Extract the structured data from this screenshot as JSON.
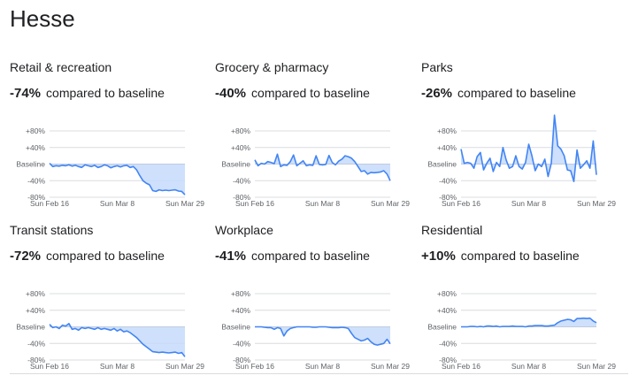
{
  "page": {
    "title": "Hesse"
  },
  "common": {
    "suffix": "compared to baseline"
  },
  "chart_data": [
    {
      "type": "line",
      "title": "Retail & recreation",
      "headline": "-74%",
      "ylim": [
        -80,
        80
      ],
      "yticks": [
        {
          "value": 80,
          "label": "+80%"
        },
        {
          "value": 40,
          "label": "+40%"
        },
        {
          "value": 0,
          "label": "Baseline"
        },
        {
          "value": -40,
          "label": "-40%"
        },
        {
          "value": -80,
          "label": "-80%"
        }
      ],
      "xticks": [
        {
          "index": 0,
          "label": "Sun Feb 16"
        },
        {
          "index": 21,
          "label": "Sun Mar 8"
        },
        {
          "index": 42,
          "label": "Sun Mar 29"
        }
      ],
      "values": [
        2,
        -6,
        -4,
        -5,
        -3,
        -4,
        -2,
        -5,
        -3,
        -6,
        -8,
        -2,
        -4,
        -6,
        -3,
        -8,
        -6,
        -2,
        -4,
        -9,
        -6,
        -4,
        -7,
        -4,
        -3,
        -8,
        -6,
        -14,
        -28,
        -40,
        -46,
        -50,
        -64,
        -66,
        -62,
        -64,
        -63,
        -64,
        -63,
        -62,
        -65,
        -66,
        -74
      ]
    },
    {
      "type": "line",
      "title": "Grocery & pharmacy",
      "headline": "-40%",
      "ylim": [
        -80,
        80
      ],
      "yticks": [
        {
          "value": 80,
          "label": "+80%"
        },
        {
          "value": 40,
          "label": "+40%"
        },
        {
          "value": 0,
          "label": "Baseline"
        },
        {
          "value": -40,
          "label": "-40%"
        },
        {
          "value": -80,
          "label": "-80%"
        }
      ],
      "xticks": [
        {
          "index": 0,
          "label": "Sun Feb 16"
        },
        {
          "index": 21,
          "label": "Sun Mar 8"
        },
        {
          "index": 42,
          "label": "Sun Mar 29"
        }
      ],
      "values": [
        10,
        -4,
        2,
        0,
        6,
        4,
        1,
        24,
        -6,
        -2,
        -3,
        6,
        22,
        -4,
        2,
        8,
        -4,
        -2,
        -3,
        20,
        -1,
        -2,
        -1,
        21,
        4,
        -2,
        7,
        12,
        20,
        18,
        14,
        6,
        -6,
        -18,
        -16,
        -24,
        -20,
        -21,
        -20,
        -19,
        -16,
        -24,
        -40
      ]
    },
    {
      "type": "line",
      "title": "Parks",
      "headline": "-26%",
      "ylim": [
        -80,
        80
      ],
      "yticks": [
        {
          "value": 80,
          "label": "+80%"
        },
        {
          "value": 40,
          "label": "+40%"
        },
        {
          "value": 0,
          "label": "Baseline"
        },
        {
          "value": -40,
          "label": "-40%"
        },
        {
          "value": -80,
          "label": "-80%"
        }
      ],
      "xticks": [
        {
          "index": 0,
          "label": "Sun Feb 16"
        },
        {
          "index": 21,
          "label": "Sun Mar 8"
        },
        {
          "index": 42,
          "label": "Sun Mar 29"
        }
      ],
      "values": [
        36,
        2,
        4,
        2,
        -10,
        18,
        28,
        -14,
        2,
        14,
        -18,
        4,
        -6,
        40,
        10,
        -10,
        -6,
        20,
        -6,
        -12,
        4,
        48,
        20,
        -16,
        0,
        -6,
        12,
        -30,
        2,
        118,
        44,
        36,
        20,
        -14,
        -16,
        -42,
        34,
        -10,
        -2,
        8,
        -10,
        56,
        -26
      ]
    },
    {
      "type": "line",
      "title": "Transit stations",
      "headline": "-72%",
      "ylim": [
        -80,
        80
      ],
      "yticks": [
        {
          "value": 80,
          "label": "+80%"
        },
        {
          "value": 40,
          "label": "+40%"
        },
        {
          "value": 0,
          "label": "Baseline"
        },
        {
          "value": -40,
          "label": "-40%"
        },
        {
          "value": -80,
          "label": "-80%"
        }
      ],
      "xticks": [
        {
          "index": 0,
          "label": "Sun Feb 16"
        },
        {
          "index": 21,
          "label": "Sun Mar 8"
        },
        {
          "index": 42,
          "label": "Sun Mar 29"
        }
      ],
      "values": [
        6,
        -2,
        0,
        -4,
        4,
        2,
        8,
        -6,
        -4,
        -8,
        -2,
        -4,
        -2,
        -4,
        -6,
        -2,
        -6,
        -4,
        -6,
        -8,
        -4,
        -10,
        -6,
        -12,
        -10,
        -14,
        -20,
        -26,
        -34,
        -42,
        -48,
        -54,
        -60,
        -61,
        -62,
        -61,
        -62,
        -63,
        -62,
        -61,
        -64,
        -62,
        -72
      ]
    },
    {
      "type": "line",
      "title": "Workplace",
      "headline": "-41%",
      "ylim": [
        -80,
        80
      ],
      "yticks": [
        {
          "value": 80,
          "label": "+80%"
        },
        {
          "value": 40,
          "label": "+40%"
        },
        {
          "value": 0,
          "label": "Baseline"
        },
        {
          "value": -40,
          "label": "-40%"
        },
        {
          "value": -80,
          "label": "-80%"
        }
      ],
      "xticks": [
        {
          "index": 0,
          "label": "Sun Feb 16"
        },
        {
          "index": 21,
          "label": "Sun Mar 8"
        },
        {
          "index": 42,
          "label": "Sun Mar 29"
        }
      ],
      "values": [
        0,
        0,
        0,
        -1,
        -2,
        -2,
        -6,
        -2,
        -4,
        -22,
        -10,
        -4,
        -2,
        0,
        0,
        0,
        0,
        0,
        -1,
        -1,
        0,
        0,
        0,
        -1,
        -2,
        -2,
        -2,
        -1,
        -2,
        -4,
        -16,
        -26,
        -30,
        -34,
        -32,
        -28,
        -36,
        -42,
        -44,
        -42,
        -40,
        -30,
        -41
      ]
    },
    {
      "type": "line",
      "title": "Residential",
      "headline": "+10%",
      "ylim": [
        -80,
        80
      ],
      "yticks": [
        {
          "value": 80,
          "label": "+80%"
        },
        {
          "value": 40,
          "label": "+40%"
        },
        {
          "value": 0,
          "label": "Baseline"
        },
        {
          "value": -40,
          "label": "-40%"
        },
        {
          "value": -80,
          "label": "-80%"
        }
      ],
      "xticks": [
        {
          "index": 0,
          "label": "Sun Feb 16"
        },
        {
          "index": 21,
          "label": "Sun Mar 8"
        },
        {
          "index": 42,
          "label": "Sun Mar 29"
        }
      ],
      "values": [
        0,
        0,
        0,
        1,
        1,
        0,
        1,
        0,
        2,
        2,
        1,
        2,
        0,
        1,
        1,
        1,
        2,
        1,
        1,
        1,
        0,
        2,
        2,
        3,
        3,
        3,
        2,
        2,
        3,
        4,
        10,
        14,
        16,
        18,
        17,
        13,
        20,
        20,
        21,
        20,
        21,
        14,
        10
      ]
    }
  ]
}
